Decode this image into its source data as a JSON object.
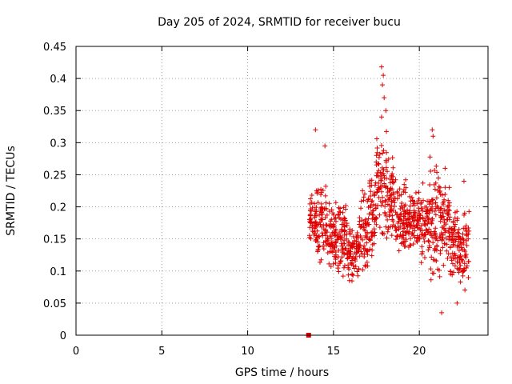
{
  "chart_data": {
    "type": "scatter",
    "title": "Day 205 of 2024, SRMTID for receiver bucu",
    "xlabel": "GPS time / hours",
    "ylabel": "SRMTID / TECUs",
    "xlim": [
      0,
      24
    ],
    "ylim": [
      0,
      0.45
    ],
    "xticks": [
      0,
      5,
      10,
      15,
      20
    ],
    "xtick_labels": [
      "0",
      "5",
      "10",
      "15",
      "20"
    ],
    "yticks": [
      0,
      0.05,
      0.1,
      0.15,
      0.2,
      0.25,
      0.3,
      0.35,
      0.4,
      0.45
    ],
    "ytick_labels": [
      "0",
      "0.05",
      "0.1",
      "0.15",
      "0.2",
      "0.25",
      "0.3",
      "0.35",
      "0.4",
      "0.45"
    ],
    "grid": true,
    "marker": "plus",
    "color": "#e00000",
    "outlier_marker": {
      "x": 13.55,
      "y": 0.0,
      "shape": "square"
    },
    "series": [
      {
        "name": "SRMTID",
        "x_range": [
          13.6,
          22.9
        ],
        "segments": [
          {
            "t0": 13.6,
            "t1": 14.0,
            "lo": 0.12,
            "hi": 0.24
          },
          {
            "t0": 14.0,
            "t1": 14.6,
            "lo": 0.08,
            "hi": 0.27
          },
          {
            "t0": 14.6,
            "t1": 15.2,
            "lo": 0.09,
            "hi": 0.22
          },
          {
            "t0": 15.2,
            "t1": 15.8,
            "lo": 0.07,
            "hi": 0.24
          },
          {
            "t0": 15.8,
            "t1": 16.5,
            "lo": 0.07,
            "hi": 0.19
          },
          {
            "t0": 16.5,
            "t1": 17.0,
            "lo": 0.07,
            "hi": 0.24
          },
          {
            "t0": 17.0,
            "t1": 17.5,
            "lo": 0.1,
            "hi": 0.29
          },
          {
            "t0": 17.5,
            "t1": 18.1,
            "lo": 0.11,
            "hi": 0.36
          },
          {
            "t0": 18.1,
            "t1": 18.6,
            "lo": 0.13,
            "hi": 0.3
          },
          {
            "t0": 18.6,
            "t1": 19.3,
            "lo": 0.1,
            "hi": 0.27
          },
          {
            "t0": 19.3,
            "t1": 20.0,
            "lo": 0.11,
            "hi": 0.25
          },
          {
            "t0": 20.0,
            "t1": 20.6,
            "lo": 0.09,
            "hi": 0.26
          },
          {
            "t0": 20.6,
            "t1": 21.2,
            "lo": 0.06,
            "hi": 0.29
          },
          {
            "t0": 21.2,
            "t1": 21.8,
            "lo": 0.09,
            "hi": 0.25
          },
          {
            "t0": 21.8,
            "t1": 22.3,
            "lo": 0.06,
            "hi": 0.22
          },
          {
            "t0": 22.3,
            "t1": 22.9,
            "lo": 0.05,
            "hi": 0.21
          }
        ],
        "peaks": [
          {
            "x": 17.8,
            "y": 0.418
          },
          {
            "x": 17.9,
            "y": 0.405
          },
          {
            "x": 17.85,
            "y": 0.39
          },
          {
            "x": 17.95,
            "y": 0.37
          },
          {
            "x": 18.05,
            "y": 0.35
          },
          {
            "x": 17.8,
            "y": 0.34
          },
          {
            "x": 13.95,
            "y": 0.32
          },
          {
            "x": 20.75,
            "y": 0.32
          },
          {
            "x": 20.8,
            "y": 0.31
          },
          {
            "x": 14.5,
            "y": 0.295
          },
          {
            "x": 21.5,
            "y": 0.26
          },
          {
            "x": 22.6,
            "y": 0.24
          },
          {
            "x": 21.3,
            "y": 0.035
          },
          {
            "x": 22.2,
            "y": 0.05
          }
        ]
      }
    ]
  }
}
